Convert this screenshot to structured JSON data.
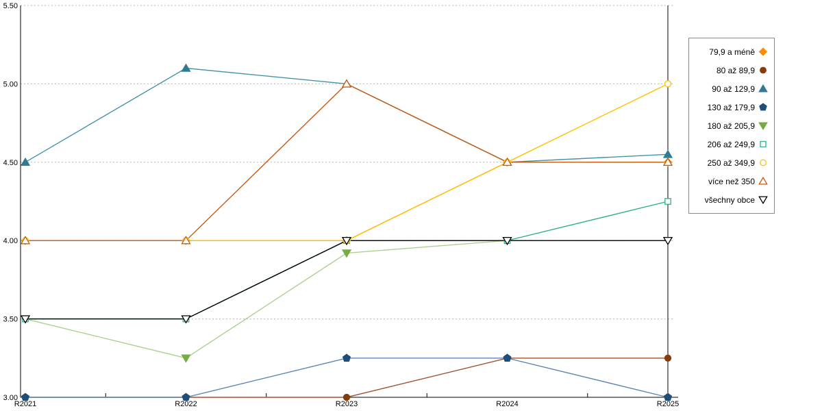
{
  "chart_data": {
    "type": "line",
    "title": "",
    "x_categories": [
      "R2021",
      "R2022",
      "R2023",
      "R2024",
      "R2025"
    ],
    "ylim": [
      3.0,
      5.5
    ],
    "yticks": [
      "3.00",
      "3.50",
      "4.00",
      "4.50",
      "5.00",
      "5.50"
    ],
    "grid": "horizontal-dotted",
    "legend_position": "right",
    "series": [
      {
        "name": "79,9 a méně",
        "marker": "diamond",
        "fill": "filled",
        "color": "#FF8C00",
        "marker_color": "#FF8C00",
        "values": [
          4.0,
          4.0,
          4.0,
          4.5,
          4.5
        ]
      },
      {
        "name": "80 až 89,9",
        "marker": "circle",
        "fill": "filled",
        "color": "#A0522D",
        "marker_color": "#843C0C",
        "values": [
          3.0,
          3.0,
          3.0,
          3.25,
          3.25
        ]
      },
      {
        "name": "90 až 129,9",
        "marker": "triangle-up",
        "fill": "filled",
        "color": "#4593A9",
        "marker_color": "#2E7B93",
        "values": [
          4.5,
          5.1,
          5.0,
          4.5,
          4.55
        ]
      },
      {
        "name": "130 až 179,9",
        "marker": "pentagon",
        "fill": "filled",
        "color": "#5B84B1",
        "marker_color": "#1F4E79",
        "values": [
          3.0,
          3.0,
          3.25,
          3.25,
          3.0
        ]
      },
      {
        "name": "180 až 205,9",
        "marker": "triangle-down",
        "fill": "filled",
        "color": "#A9D18E",
        "marker_color": "#77AC43",
        "values": [
          3.5,
          3.25,
          3.92,
          4.0,
          4.0
        ]
      },
      {
        "name": "206 až 249,9",
        "marker": "square",
        "fill": "open",
        "color": "#2FB089",
        "marker_color": "#2FB089",
        "values": [
          3.5,
          3.5,
          4.0,
          4.0,
          4.25
        ]
      },
      {
        "name": "250 až 349,9",
        "marker": "circle",
        "fill": "open",
        "color": "#FFC000",
        "marker_color": "#FFC000",
        "values": [
          4.0,
          4.0,
          4.0,
          4.5,
          5.0
        ]
      },
      {
        "name": "více než 350",
        "marker": "triangle-up",
        "fill": "open",
        "color": "#C55A11",
        "marker_color": "#C55A11",
        "values": [
          4.0,
          4.0,
          5.0,
          4.5,
          4.5
        ]
      },
      {
        "name": "všechny obce",
        "marker": "triangle-down",
        "fill": "open",
        "color": "#000000",
        "marker_color": "#000000",
        "values": [
          3.5,
          3.5,
          4.0,
          4.0,
          4.0
        ]
      }
    ]
  }
}
